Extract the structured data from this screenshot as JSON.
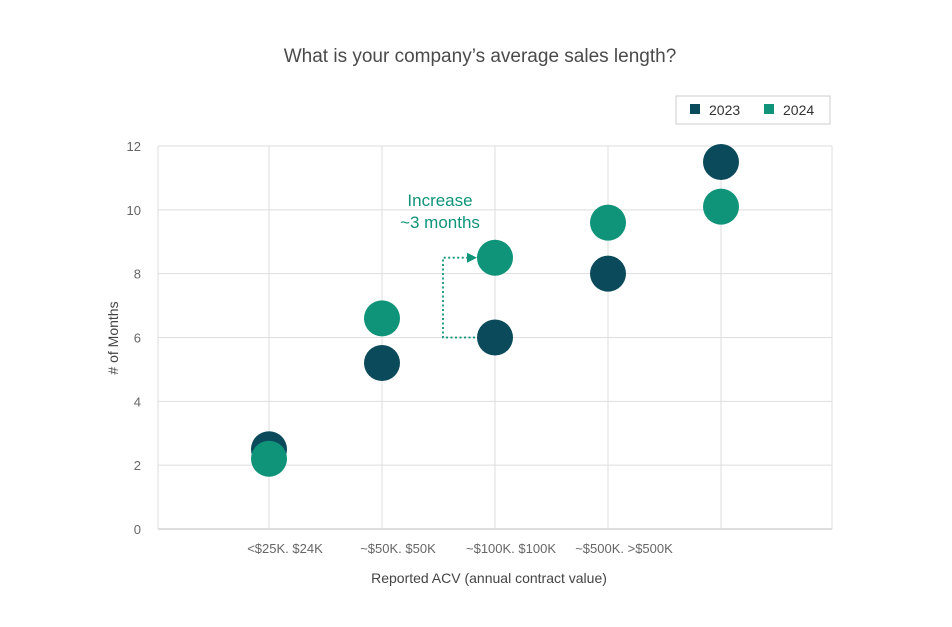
{
  "chart_data": {
    "type": "scatter",
    "title": "What is your company’s average sales length?",
    "xlabel": "Reported ACV (annual contract value)",
    "ylabel": "# of Months",
    "categories": [
      "<$25K. $24K",
      "~$50K. $50K",
      "~$100K. $100K",
      "~$500K. >$500K",
      ""
    ],
    "ylim": [
      0,
      12
    ],
    "yticks": [
      0,
      2,
      4,
      6,
      8,
      10,
      12
    ],
    "grid": true,
    "legend_position": "top-right",
    "series": [
      {
        "name": "2023",
        "color": "#0b4a5b",
        "values": [
          2.5,
          5.2,
          6.0,
          8.0,
          11.5
        ]
      },
      {
        "name": "2024",
        "color": "#0f9479",
        "values": [
          2.2,
          6.6,
          8.5,
          9.6,
          10.1
        ]
      }
    ],
    "annotation": {
      "lines": [
        "Increase",
        "~3 months"
      ],
      "color": "#0f9479",
      "category_index": 2,
      "from_value": 6.0,
      "to_value": 8.5
    }
  }
}
